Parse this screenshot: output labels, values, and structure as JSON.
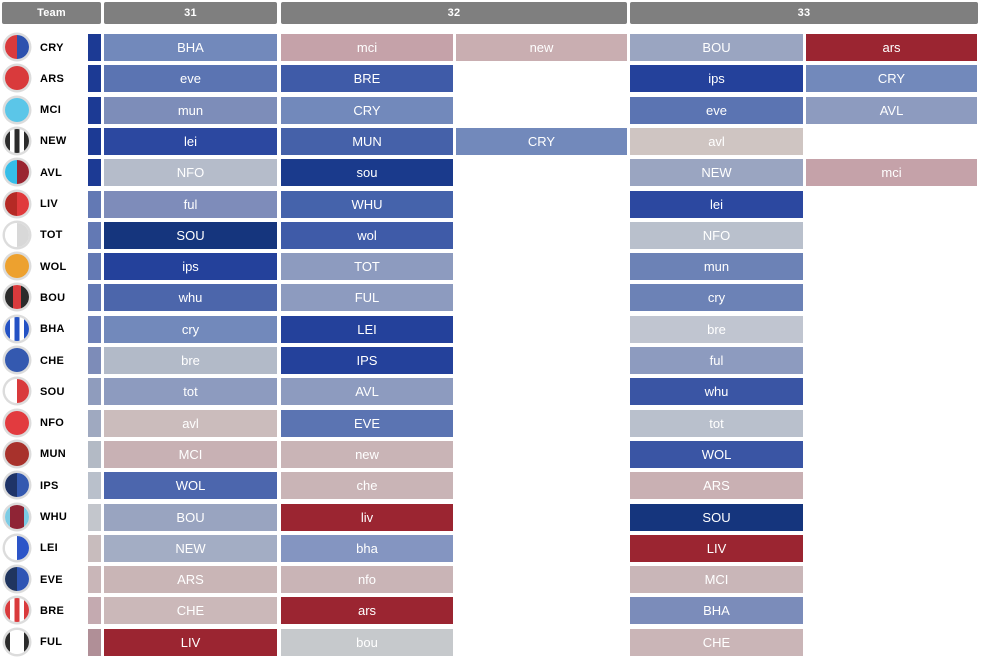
{
  "chart_data": {
    "type": "heatmap",
    "description": "Fantasy football fixture difficulty ticker, gameweeks 31-33. Uppercase opponent = home fixture, lowercase = away. Cell color encodes fixture difficulty from easy (dark blue) to hard (dark red).",
    "columns": {
      "team": "Team",
      "gameweeks": [
        "31",
        "32",
        "33"
      ]
    },
    "color_scale_hint": {
      "easiest": "#15357d",
      "easy": "#24419b",
      "medium": "#8d9bbf",
      "hard": "#c5a2a9",
      "hardest": "#9b2531"
    },
    "teams": [
      {
        "code": "CRY",
        "badge": {
          "type": "halves",
          "colors": [
            "#d93a3c",
            "#2c51ae"
          ]
        },
        "strip_color": "#1c3a94",
        "gw31": [
          {
            "opp": "BHA",
            "venue": "home",
            "color": "#7289bb"
          }
        ],
        "gw32": [
          {
            "opp": "mci",
            "venue": "away",
            "color": "#c5a2a9"
          },
          {
            "opp": "new",
            "venue": "away",
            "color": "#c9aeb1"
          }
        ],
        "gw33": [
          {
            "opp": "BOU",
            "venue": "home",
            "color": "#9aa5c1"
          },
          {
            "opp": "ars",
            "venue": "away",
            "color": "#9b2531"
          }
        ]
      },
      {
        "code": "ARS",
        "badge": {
          "type": "solid",
          "colors": [
            "#d93a3c"
          ]
        },
        "strip_color": "#1c3a94",
        "gw31": [
          {
            "opp": "eve",
            "venue": "away",
            "color": "#5b74b2"
          }
        ],
        "gw32": [
          {
            "opp": "BRE",
            "venue": "home",
            "color": "#3f5ba8"
          }
        ],
        "gw33": [
          {
            "opp": "ips",
            "venue": "away",
            "color": "#24419b"
          },
          {
            "opp": "CRY",
            "venue": "home",
            "color": "#7289bb"
          }
        ]
      },
      {
        "code": "MCI",
        "badge": {
          "type": "solid",
          "colors": [
            "#5bc6e8"
          ]
        },
        "strip_color": "#1c3a94",
        "gw31": [
          {
            "opp": "mun",
            "venue": "away",
            "color": "#7d8db9"
          }
        ],
        "gw32": [
          {
            "opp": "CRY",
            "venue": "home",
            "color": "#7289bb"
          }
        ],
        "gw33": [
          {
            "opp": "eve",
            "venue": "away",
            "color": "#5b74b2"
          },
          {
            "opp": "AVL",
            "venue": "home",
            "color": "#8d9bbf"
          }
        ]
      },
      {
        "code": "NEW",
        "badge": {
          "type": "stripes",
          "colors": [
            "#2b2b2b",
            "#ffffff",
            "#2b2b2b",
            "#ffffff",
            "#2b2b2b"
          ]
        },
        "strip_color": "#1c3a94",
        "gw31": [
          {
            "opp": "lei",
            "venue": "away",
            "color": "#2c48a0"
          }
        ],
        "gw32": [
          {
            "opp": "MUN",
            "venue": "home",
            "color": "#4561a9"
          },
          {
            "opp": "CRY",
            "venue": "home",
            "color": "#7289bb"
          }
        ],
        "gw33": [
          {
            "opp": "avl",
            "venue": "away",
            "color": "#cfc5c2"
          }
        ]
      },
      {
        "code": "AVL",
        "badge": {
          "type": "halves",
          "colors": [
            "#35bde8",
            "#9a2531"
          ]
        },
        "strip_color": "#1c3a94",
        "gw31": [
          {
            "opp": "NFO",
            "venue": "home",
            "color": "#b5bcca"
          }
        ],
        "gw32": [
          {
            "opp": "sou",
            "venue": "away",
            "color": "#1a3a8c"
          }
        ],
        "gw33": [
          {
            "opp": "NEW",
            "venue": "home",
            "color": "#9aa5c1"
          },
          {
            "opp": "mci",
            "venue": "away",
            "color": "#c5a2a9"
          }
        ]
      },
      {
        "code": "LIV",
        "badge": {
          "type": "halves",
          "colors": [
            "#b52a25",
            "#e03a3c"
          ]
        },
        "strip_color": "#6379b4",
        "gw31": [
          {
            "opp": "ful",
            "venue": "away",
            "color": "#7e8cba"
          }
        ],
        "gw32": [
          {
            "opp": "WHU",
            "venue": "home",
            "color": "#4563ab"
          }
        ],
        "gw33": [
          {
            "opp": "lei",
            "venue": "away",
            "color": "#2c48a0"
          }
        ]
      },
      {
        "code": "TOT",
        "badge": {
          "type": "halves",
          "colors": [
            "#ffffff",
            "#d8d8d8"
          ]
        },
        "strip_color": "#6379b4",
        "gw31": [
          {
            "opp": "SOU",
            "venue": "home",
            "color": "#15357d"
          }
        ],
        "gw32": [
          {
            "opp": "wol",
            "venue": "away",
            "color": "#3f5ba8"
          }
        ],
        "gw33": [
          {
            "opp": "NFO",
            "venue": "home",
            "color": "#b9c0cc"
          }
        ]
      },
      {
        "code": "WOL",
        "badge": {
          "type": "solid",
          "colors": [
            "#eda12f"
          ]
        },
        "strip_color": "#6379b4",
        "gw31": [
          {
            "opp": "ips",
            "venue": "away",
            "color": "#24419b"
          }
        ],
        "gw32": [
          {
            "opp": "TOT",
            "venue": "home",
            "color": "#8d9bbf"
          }
        ],
        "gw33": [
          {
            "opp": "mun",
            "venue": "away",
            "color": "#6c82b6"
          }
        ]
      },
      {
        "code": "BOU",
        "badge": {
          "type": "stripes",
          "colors": [
            "#2b2b2b",
            "#d93a3c",
            "#2b2b2b"
          ]
        },
        "strip_color": "#6379b4",
        "gw31": [
          {
            "opp": "whu",
            "venue": "away",
            "color": "#4c66ab"
          }
        ],
        "gw32": [
          {
            "opp": "FUL",
            "venue": "home",
            "color": "#8d9bbf"
          }
        ],
        "gw33": [
          {
            "opp": "cry",
            "venue": "away",
            "color": "#6c82b6"
          }
        ]
      },
      {
        "code": "BHA",
        "badge": {
          "type": "stripes",
          "colors": [
            "#2452c4",
            "#ffffff",
            "#2452c4",
            "#ffffff",
            "#2452c4"
          ]
        },
        "strip_color": "#6d81b8",
        "gw31": [
          {
            "opp": "cry",
            "venue": "away",
            "color": "#7289bb"
          }
        ],
        "gw32": [
          {
            "opp": "LEI",
            "venue": "home",
            "color": "#24419b"
          }
        ],
        "gw33": [
          {
            "opp": "bre",
            "venue": "away",
            "color": "#c0c5d0"
          }
        ]
      },
      {
        "code": "CHE",
        "badge": {
          "type": "solid",
          "colors": [
            "#3459b0"
          ]
        },
        "strip_color": "#7d8cb8",
        "gw31": [
          {
            "opp": "bre",
            "venue": "away",
            "color": "#b2bac8"
          }
        ],
        "gw32": [
          {
            "opp": "IPS",
            "venue": "home",
            "color": "#24419b"
          }
        ],
        "gw33": [
          {
            "opp": "ful",
            "venue": "away",
            "color": "#8d9bbf"
          }
        ]
      },
      {
        "code": "SOU",
        "badge": {
          "type": "halves",
          "colors": [
            "#ffffff",
            "#d93a3c"
          ]
        },
        "strip_color": "#8f9cbd",
        "gw31": [
          {
            "opp": "tot",
            "venue": "away",
            "color": "#8d9bbf"
          }
        ],
        "gw32": [
          {
            "opp": "AVL",
            "venue": "home",
            "color": "#8d9bbf"
          }
        ],
        "gw33": [
          {
            "opp": "whu",
            "venue": "away",
            "color": "#3a55a4"
          }
        ]
      },
      {
        "code": "NFO",
        "badge": {
          "type": "solid",
          "colors": [
            "#e23b3f"
          ]
        },
        "strip_color": "#9fa9c0",
        "gw31": [
          {
            "opp": "avl",
            "venue": "away",
            "color": "#cbbcbc"
          }
        ],
        "gw32": [
          {
            "opp": "EVE",
            "venue": "home",
            "color": "#5b74b2"
          }
        ],
        "gw33": [
          {
            "opp": "tot",
            "venue": "away",
            "color": "#b9c0cc"
          }
        ]
      },
      {
        "code": "MUN",
        "badge": {
          "type": "solid",
          "colors": [
            "#a8322c"
          ]
        },
        "strip_color": "#b3bac5",
        "gw31": [
          {
            "opp": "MCI",
            "venue": "home",
            "color": "#c8b1b4"
          }
        ],
        "gw32": [
          {
            "opp": "new",
            "venue": "away",
            "color": "#c9b4b6"
          }
        ],
        "gw33": [
          {
            "opp": "WOL",
            "venue": "home",
            "color": "#3a55a4"
          }
        ]
      },
      {
        "code": "IPS",
        "badge": {
          "type": "halves",
          "colors": [
            "#1f3468",
            "#3459b0"
          ]
        },
        "strip_color": "#b9c0cb",
        "gw31": [
          {
            "opp": "WOL",
            "venue": "home",
            "color": "#4c66ad"
          }
        ],
        "gw32": [
          {
            "opp": "che",
            "venue": "away",
            "color": "#c9b4b6"
          }
        ],
        "gw33": [
          {
            "opp": "ARS",
            "venue": "home",
            "color": "#c9b0b3"
          }
        ]
      },
      {
        "code": "WHU",
        "badge": {
          "type": "stripes",
          "colors": [
            "#7bcbe4",
            "#8f2435",
            "#8f2435",
            "#8f2435",
            "#7bcbe4"
          ]
        },
        "strip_color": "#c3c6cc",
        "gw31": [
          {
            "opp": "BOU",
            "venue": "home",
            "color": "#99a4c0"
          }
        ],
        "gw32": [
          {
            "opp": "liv",
            "venue": "away",
            "color": "#9b2531"
          }
        ],
        "gw33": [
          {
            "opp": "SOU",
            "venue": "home",
            "color": "#15357d"
          }
        ]
      },
      {
        "code": "LEI",
        "badge": {
          "type": "halves",
          "colors": [
            "#ffffff",
            "#2c55c8"
          ]
        },
        "strip_color": "#c8bcbd",
        "gw31": [
          {
            "opp": "NEW",
            "venue": "home",
            "color": "#a3adc4"
          }
        ],
        "gw32": [
          {
            "opp": "bha",
            "venue": "away",
            "color": "#8495c1"
          }
        ],
        "gw33": [
          {
            "opp": "LIV",
            "venue": "home",
            "color": "#9b2531"
          }
        ]
      },
      {
        "code": "EVE",
        "badge": {
          "type": "halves",
          "colors": [
            "#20355f",
            "#2f55b4"
          ]
        },
        "strip_color": "#c9b6b8",
        "gw31": [
          {
            "opp": "ARS",
            "venue": "home",
            "color": "#c9b5b6"
          }
        ],
        "gw32": [
          {
            "opp": "nfo",
            "venue": "away",
            "color": "#c9b4b6"
          }
        ],
        "gw33": [
          {
            "opp": "MCI",
            "venue": "home",
            "color": "#c9b6b8"
          }
        ]
      },
      {
        "code": "BRE",
        "badge": {
          "type": "stripes",
          "colors": [
            "#d93a3c",
            "#ffffff",
            "#d93a3c",
            "#ffffff",
            "#d93a3c"
          ]
        },
        "strip_color": "#c4aab0",
        "gw31": [
          {
            "opp": "CHE",
            "venue": "home",
            "color": "#cbb8b9"
          }
        ],
        "gw32": [
          {
            "opp": "ars",
            "venue": "away",
            "color": "#9b2531"
          }
        ],
        "gw33": [
          {
            "opp": "BHA",
            "venue": "home",
            "color": "#7b8cba"
          }
        ]
      },
      {
        "code": "FUL",
        "badge": {
          "type": "stripes",
          "colors": [
            "#2b2b2b",
            "#ffffff",
            "#ffffff",
            "#ffffff",
            "#2b2b2b"
          ]
        },
        "strip_color": "#b08f97",
        "gw31": [
          {
            "opp": "LIV",
            "venue": "home",
            "color": "#9b2531"
          }
        ],
        "gw32": [
          {
            "opp": "bou",
            "venue": "away",
            "color": "#c6c9cc"
          }
        ],
        "gw33": [
          {
            "opp": "CHE",
            "venue": "home",
            "color": "#cab5b7"
          }
        ]
      }
    ]
  },
  "layout_colors": {
    "header_bg": "#7f7f7f",
    "header_text": "#ffffff",
    "cell_text": "#ffffff",
    "team_text": "#000000",
    "badge_ring": "#dcdcdc",
    "background": "#ffffff"
  }
}
